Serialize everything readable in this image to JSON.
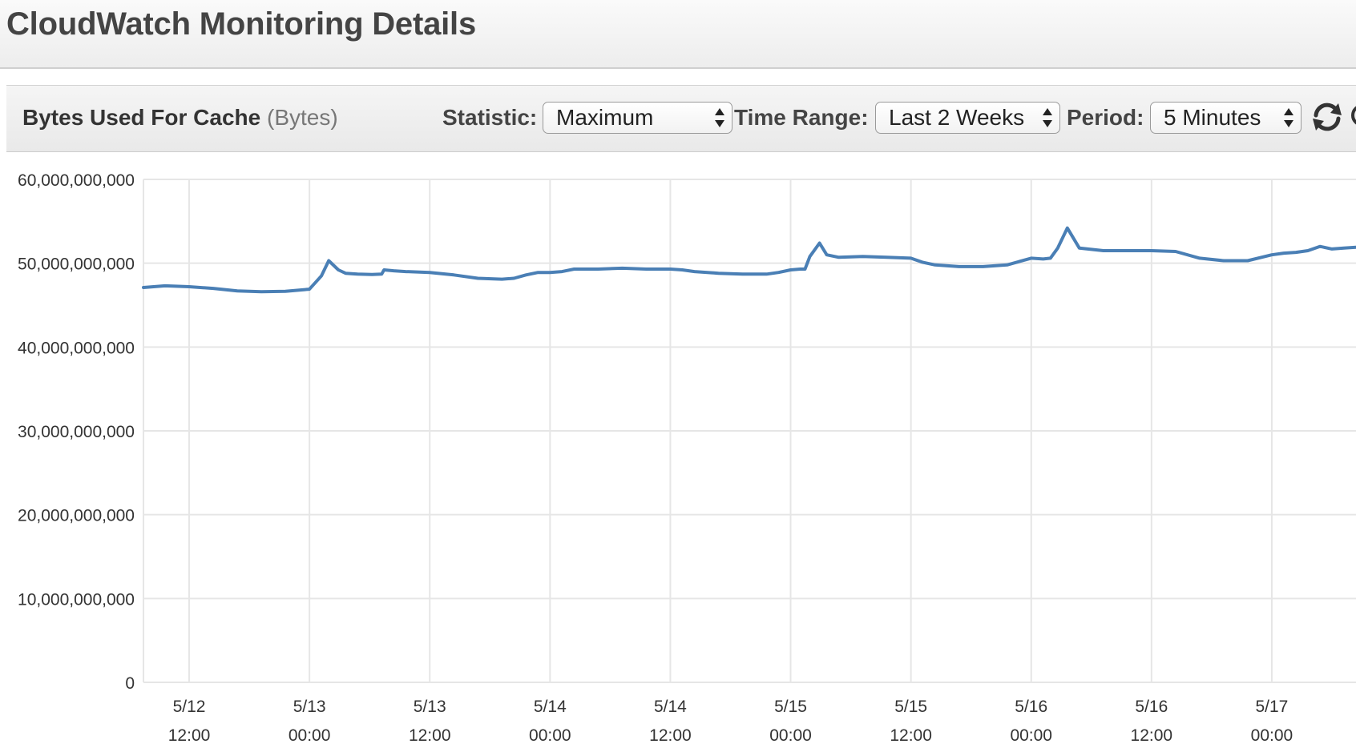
{
  "page": {
    "title": "CloudWatch Monitoring Details"
  },
  "toolbar": {
    "metric_name": "Bytes Used For Cache",
    "metric_unit": "(Bytes)",
    "statistic_label": "Statistic:",
    "statistic_value": "Maximum",
    "time_range_label": "Time Range:",
    "time_range_value": "Last 2 Weeks",
    "period_label": "Period:",
    "period_value": "5 Minutes",
    "refresh_icon": "refresh-icon"
  },
  "colors": {
    "line": "#4a7fb5",
    "grid": "#e6e6e6",
    "header_bg": "#efefef",
    "text": "#333333"
  },
  "chart_data": {
    "type": "line",
    "ylim": [
      0,
      60000000000
    ],
    "y_ticks": [
      {
        "value": 60000000000,
        "label": "60,000,000,000"
      },
      {
        "value": 50000000000,
        "label": "50,000,000,000"
      },
      {
        "value": 40000000000,
        "label": "40,000,000,000"
      },
      {
        "value": 30000000000,
        "label": "30,000,000,000"
      },
      {
        "value": 20000000000,
        "label": "20,000,000,000"
      },
      {
        "value": 10000000000,
        "label": "10,000,000,000"
      },
      {
        "value": 0,
        "label": "0"
      }
    ],
    "xlim": [
      0.81,
      5.85
    ],
    "x_ticks": [
      {
        "value": 1.0,
        "date": "5/12",
        "time": "12:00"
      },
      {
        "value": 1.5,
        "date": "5/13",
        "time": "00:00"
      },
      {
        "value": 2.0,
        "date": "5/13",
        "time": "12:00"
      },
      {
        "value": 2.5,
        "date": "5/14",
        "time": "00:00"
      },
      {
        "value": 3.0,
        "date": "5/14",
        "time": "12:00"
      },
      {
        "value": 3.5,
        "date": "5/15",
        "time": "00:00"
      },
      {
        "value": 4.0,
        "date": "5/15",
        "time": "12:00"
      },
      {
        "value": 4.5,
        "date": "5/16",
        "time": "00:00"
      },
      {
        "value": 5.0,
        "date": "5/16",
        "time": "12:00"
      },
      {
        "value": 5.5,
        "date": "5/17",
        "time": "00:00"
      }
    ],
    "grid": true,
    "series": [
      {
        "x": [
          0.81,
          0.9,
          1.0,
          1.1,
          1.2,
          1.3,
          1.4,
          1.5,
          1.55,
          1.58,
          1.62,
          1.65,
          1.7,
          1.76,
          1.8,
          1.81,
          1.85,
          1.9,
          2.0,
          2.1,
          2.2,
          2.3,
          2.35,
          2.4,
          2.45,
          2.5,
          2.55,
          2.6,
          2.7,
          2.8,
          2.9,
          3.0,
          3.05,
          3.1,
          3.2,
          3.3,
          3.4,
          3.45,
          3.5,
          3.54,
          3.56,
          3.58,
          3.62,
          3.65,
          3.7,
          3.8,
          3.9,
          4.0,
          4.05,
          4.1,
          4.2,
          4.3,
          4.4,
          4.45,
          4.5,
          4.55,
          4.58,
          4.61,
          4.65,
          4.7,
          4.8,
          4.9,
          5.0,
          5.1,
          5.2,
          5.3,
          5.4,
          5.5,
          5.55,
          5.6,
          5.65,
          5.7,
          5.75,
          5.8,
          5.85
        ],
        "values": [
          47100000000,
          47300000000,
          47200000000,
          47000000000,
          46700000000,
          46600000000,
          46650000000,
          46900000000,
          48500000000,
          50300000000,
          49200000000,
          48800000000,
          48700000000,
          48650000000,
          48700000000,
          49200000000,
          49100000000,
          49000000000,
          48900000000,
          48600000000,
          48200000000,
          48100000000,
          48200000000,
          48600000000,
          48900000000,
          48900000000,
          49000000000,
          49300000000,
          49300000000,
          49400000000,
          49300000000,
          49300000000,
          49200000000,
          49000000000,
          48800000000,
          48700000000,
          48700000000,
          48900000000,
          49200000000,
          49300000000,
          49300000000,
          50800000000,
          52400000000,
          51000000000,
          50700000000,
          50800000000,
          50700000000,
          50600000000,
          50100000000,
          49800000000,
          49600000000,
          49600000000,
          49800000000,
          50200000000,
          50600000000,
          50500000000,
          50600000000,
          51800000000,
          54200000000,
          51800000000,
          51500000000,
          51500000000,
          51500000000,
          51400000000,
          50600000000,
          50300000000,
          50300000000,
          51000000000,
          51200000000,
          51300000000,
          51500000000,
          52000000000,
          51700000000,
          51800000000,
          51900000000
        ]
      }
    ]
  }
}
